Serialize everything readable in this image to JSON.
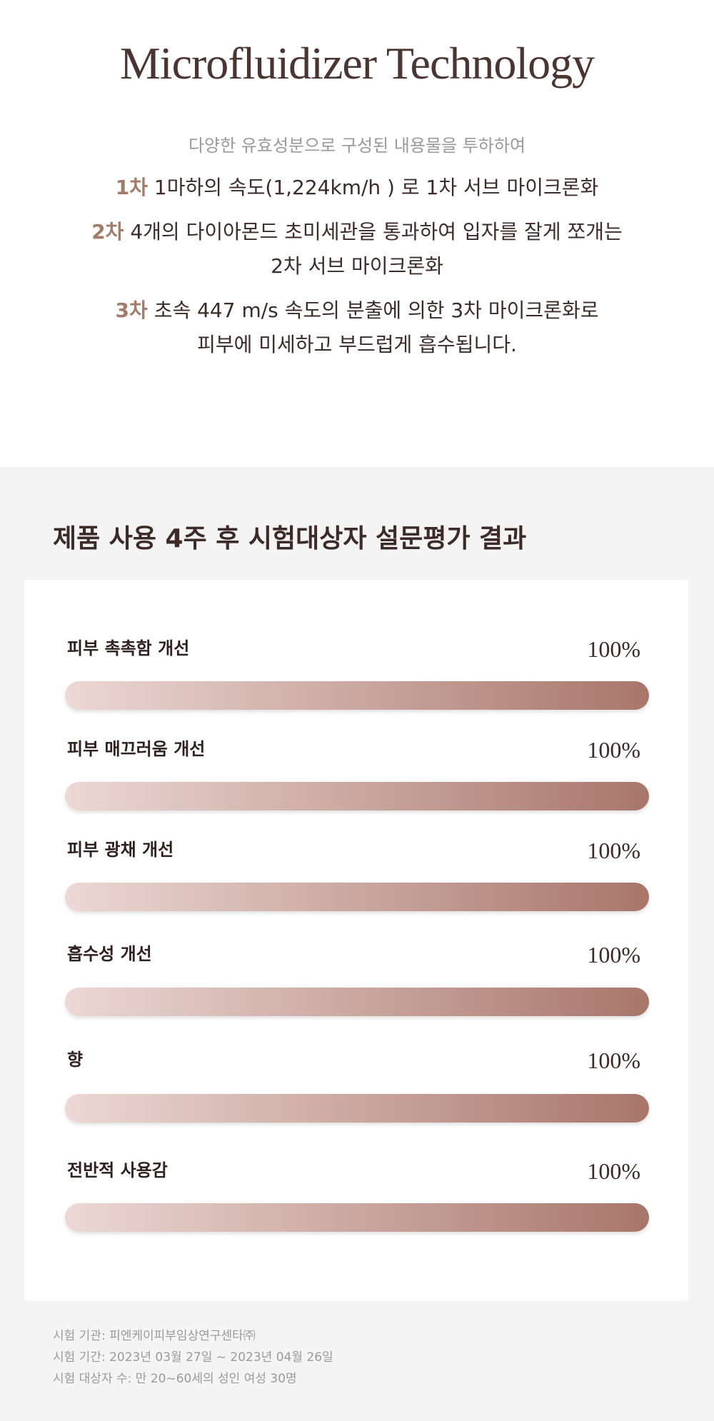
{
  "header": {
    "title": "Microfluidizer Technology"
  },
  "intro": {
    "lead": "다양한 유효성분으로 구성된 내용물을 투하하여",
    "steps": [
      {
        "label": "1차",
        "lines": [
          "1마하의 속도(1,224km/h ) 로 1차 서브 마이크론화"
        ]
      },
      {
        "label": "2차",
        "lines": [
          "4개의 다이아몬드 초미세관을 통과하여 입자를 잘게 쪼개는",
          "2차 서브 마이크론화"
        ]
      },
      {
        "label": "3차",
        "lines": [
          "초속 447 m/s 속도의 분출에 의한 3차 마이크론화로",
          "피부에 미세하고 부드럽게 흡수됩니다."
        ]
      }
    ]
  },
  "chart_data": {
    "type": "hbar",
    "title": "제품 사용 4주 후 시험대상자 설문평가 결과",
    "categories": [
      "피부 촉촉함 개선",
      "피부 매끄러움 개선",
      "피부 광채 개선",
      "흡수성 개선",
      "향",
      "전반적 사용감"
    ],
    "values": [
      100,
      100,
      100,
      100,
      100,
      100
    ],
    "value_labels": [
      "100%",
      "100%",
      "100%",
      "100%",
      "100%",
      "100%"
    ],
    "xlim": [
      0,
      100
    ],
    "color_start": "#ecd8d5",
    "color_end": "#a8766a"
  },
  "footnotes": [
    "시험 기관: 피엔케이피부임상연구센타㈜",
    "시험 기간: 2023년 03월 27일 ~ 2023년 04월 26일",
    "시험 대상자 수: 만 20~60세의 성인 여성 30명"
  ]
}
